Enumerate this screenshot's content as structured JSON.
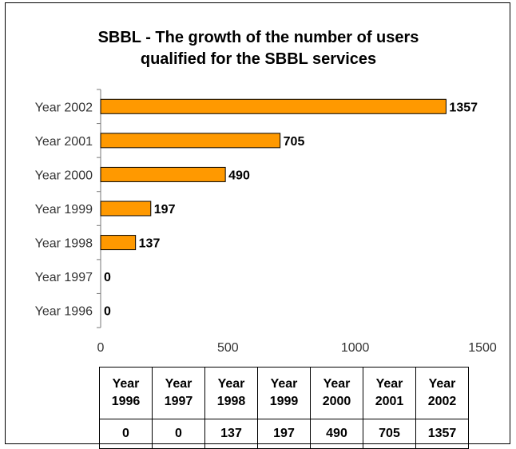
{
  "chart_data": {
    "type": "bar",
    "orientation": "horizontal",
    "title": [
      "SBBL - The growth of the number of users",
      "qualified for the SBBL services"
    ],
    "categories": [
      "Year 1996",
      "Year 1997",
      "Year 1998",
      "Year 1999",
      "Year 2000",
      "Year 2001",
      "Year 2002"
    ],
    "values": [
      0,
      0,
      137,
      197,
      490,
      705,
      1357
    ],
    "xlim": [
      0,
      1500
    ],
    "x_ticks": [
      0,
      500,
      1000,
      1500
    ],
    "grid": false,
    "bar_color": "#ff9900",
    "data_labels": true
  },
  "table": {
    "header": [
      [
        "Year",
        "1996"
      ],
      [
        "Year",
        "1997"
      ],
      [
        "Year",
        "1998"
      ],
      [
        "Year",
        "1999"
      ],
      [
        "Year",
        "2000"
      ],
      [
        "Year",
        "2001"
      ],
      [
        "Year",
        "2002"
      ]
    ],
    "values": [
      "0",
      "0",
      "137",
      "197",
      "490",
      "705",
      "1357"
    ]
  }
}
